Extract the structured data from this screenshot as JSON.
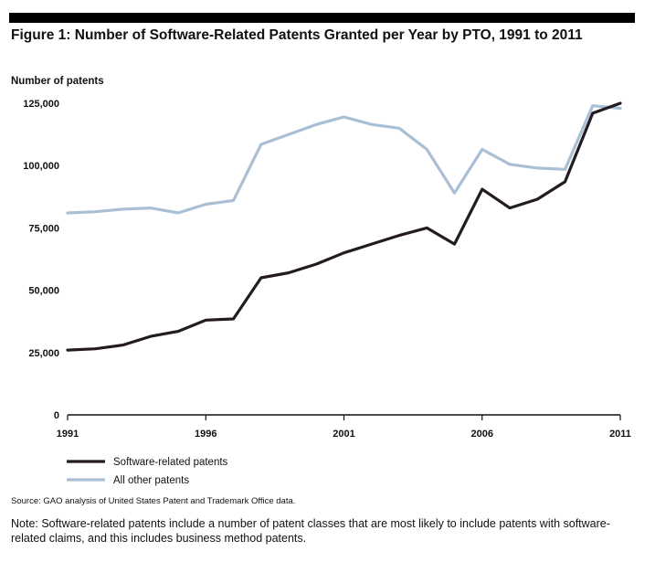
{
  "chart_data": {
    "type": "line",
    "title": "Figure 1: Number of Software-Related Patents Granted per Year by PTO, 1991 to 2011",
    "ylabel": "Number of patents",
    "xlabel": "",
    "ylim": [
      0,
      125000
    ],
    "xlim": [
      1991,
      2011
    ],
    "y_ticks": [
      0,
      25000,
      50000,
      75000,
      100000,
      125000
    ],
    "y_tick_labels": [
      "0",
      "25,000",
      "50,000",
      "75,000",
      "100,000",
      "125,000"
    ],
    "x_ticks": [
      1991,
      1996,
      2001,
      2006,
      2011
    ],
    "x_tick_labels": [
      "1991",
      "1996",
      "2001",
      "2006",
      "2011"
    ],
    "grid": false,
    "legend_position": "bottom-left",
    "x": [
      1991,
      1992,
      1993,
      1994,
      1995,
      1996,
      1997,
      1998,
      1999,
      2000,
      2001,
      2002,
      2003,
      2004,
      2005,
      2006,
      2007,
      2008,
      2009,
      2010,
      2011
    ],
    "series": [
      {
        "name": "Software-related patents",
        "color": "#231a22",
        "values": [
          26000,
          26500,
          28000,
          31500,
          33500,
          38000,
          38500,
          55000,
          57000,
          60500,
          65000,
          68500,
          72000,
          75000,
          68500,
          90500,
          83000,
          86500,
          93500,
          121000,
          125000
        ]
      },
      {
        "name": "All other patents",
        "color": "#a9bfd4",
        "values": [
          81000,
          81500,
          82500,
          83000,
          81000,
          84500,
          86000,
          108500,
          112500,
          116500,
          119500,
          116500,
          115000,
          106500,
          89000,
          106500,
          100500,
          99000,
          98500,
          124000,
          123000
        ]
      }
    ]
  },
  "source": "Source: GAO analysis of United States Patent and Trademark Office data.",
  "note": "Note: Software-related patents include a number of patent classes that are most likely to include patents with software-related claims, and this includes business method patents."
}
